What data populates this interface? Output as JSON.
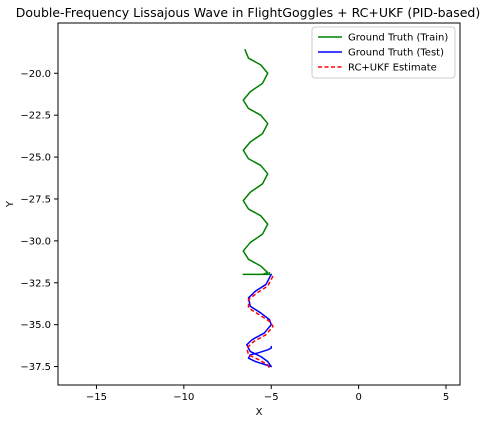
{
  "chart_data": {
    "type": "line",
    "title": "Double-Frequency Lissajous Wave in FlightGoggles + RC+UKF (PID-based)",
    "xlabel": "X",
    "ylabel": "Y",
    "xlim": [
      -17.2,
      5.8
    ],
    "ylim": [
      -38.6,
      -17.0
    ],
    "xticks": [
      -15,
      -10,
      -5,
      0,
      5
    ],
    "yticks": [
      -20.0,
      -22.5,
      -25.0,
      -27.5,
      -30.0,
      -32.5,
      -35.0,
      -37.5
    ],
    "xtick_labels": [
      "−15",
      "−10",
      "−5",
      "0",
      "5"
    ],
    "ytick_labels": [
      "−20.0",
      "−22.5",
      "−25.0",
      "−27.5",
      "−30.0",
      "−32.5",
      "−35.0",
      "−37.5"
    ],
    "grid": false,
    "legend_position": "top-right",
    "series": [
      {
        "name": "Ground Truth (Train)",
        "color": "#008000",
        "style": "solid",
        "x": [
          -6.5,
          -6.3,
          -5.6,
          -5.2,
          -5.5,
          -6.2,
          -6.6,
          -6.3,
          -5.6,
          -5.2,
          -5.5,
          -6.2,
          -6.6,
          -6.3,
          -5.6,
          -5.2,
          -5.5,
          -6.2,
          -6.6,
          -6.3,
          -5.6,
          -5.2,
          -5.5,
          -6.2,
          -6.6,
          -6.3,
          -5.6,
          -5.2,
          -5.5,
          -6.2,
          -6.6,
          -6.3,
          -5.6,
          -5.1,
          -5.1
        ],
        "y": [
          -18.6,
          -19.1,
          -19.5,
          -20.0,
          -20.6,
          -21.1,
          -21.6,
          -22.1,
          -22.5,
          -23.0,
          -23.6,
          -24.1,
          -24.6,
          -25.1,
          -25.5,
          -26.0,
          -26.6,
          -27.1,
          -27.6,
          -28.1,
          -28.5,
          -29.0,
          -29.6,
          -30.1,
          -30.6,
          -31.1,
          -31.5,
          -31.9,
          -32.0,
          -32.0,
          -32.0,
          -32.0,
          -32.0,
          -32.0,
          -31.9
        ]
      },
      {
        "name": "Ground Truth (Test)",
        "color": "#0000ff",
        "style": "solid",
        "x": [
          -5.0,
          -5.3,
          -5.9,
          -6.3,
          -6.2,
          -5.6,
          -5.1,
          -5.0,
          -5.4,
          -6.1,
          -6.4,
          -6.2,
          -5.6,
          -5.2,
          -5.0,
          -5.3,
          -5.9,
          -6.3,
          -6.2,
          -5.8,
          -5.2,
          -5.0,
          -5.0
        ],
        "y": [
          -32.0,
          -32.6,
          -33.0,
          -33.4,
          -33.9,
          -34.3,
          -34.7,
          -35.0,
          -35.5,
          -35.9,
          -36.2,
          -36.6,
          -36.9,
          -37.2,
          -37.5,
          -37.4,
          -37.2,
          -37.0,
          -36.8,
          -36.7,
          -36.5,
          -36.4,
          -36.3
        ]
      },
      {
        "name": "RC+UKF Estimate",
        "color": "#ff0000",
        "style": "dashed",
        "x": [
          -4.9,
          -5.2,
          -5.8,
          -6.3,
          -6.3,
          -5.7,
          -5.1,
          -4.9,
          -5.3,
          -6.0,
          -6.4,
          -6.3,
          -5.7,
          -5.2,
          -5.1
        ],
        "y": [
          -32.1,
          -32.7,
          -33.1,
          -33.5,
          -34.0,
          -34.4,
          -34.8,
          -35.1,
          -35.6,
          -36.0,
          -36.4,
          -36.8,
          -37.1,
          -37.4,
          -37.6
        ]
      }
    ]
  }
}
